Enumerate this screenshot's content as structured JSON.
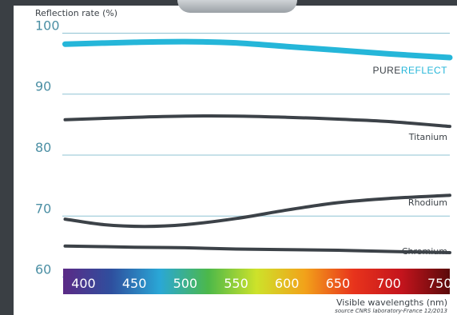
{
  "chart_data": {
    "type": "line",
    "ylabel": "Reflection rate (%)",
    "xlabel": "Visible wavelengths (nm)",
    "source": "source CNRS laboratory-France 12/2013",
    "ylim": [
      58.5,
      101.5
    ],
    "xlim": [
      380,
      760
    ],
    "y_ticks": [
      100,
      90,
      80,
      70,
      60
    ],
    "x_ticks": [
      "400",
      "450",
      "500",
      "550",
      "600",
      "650",
      "700",
      "750"
    ],
    "series": [
      {
        "name": "PUREREFLECT",
        "name_part1": "PURE",
        "name_part2": "REFLECT",
        "color": "#25b6d9",
        "points": [
          [
            382,
            98.2
          ],
          [
            450,
            98.5
          ],
          [
            500,
            98.6
          ],
          [
            550,
            98.4
          ],
          [
            600,
            97.8
          ],
          [
            650,
            97.2
          ],
          [
            700,
            96.6
          ],
          [
            760,
            96.0
          ]
        ]
      },
      {
        "name": "Titanium",
        "color": "#3c4248",
        "points": [
          [
            382,
            85.8
          ],
          [
            450,
            86.2
          ],
          [
            500,
            86.4
          ],
          [
            550,
            86.4
          ],
          [
            600,
            86.2
          ],
          [
            650,
            85.9
          ],
          [
            700,
            85.5
          ],
          [
            760,
            84.7
          ]
        ]
      },
      {
        "name": "Rhodium",
        "color": "#3c4248",
        "points": [
          [
            382,
            69.5
          ],
          [
            420,
            68.6
          ],
          [
            460,
            68.3
          ],
          [
            500,
            68.6
          ],
          [
            550,
            69.6
          ],
          [
            600,
            71.0
          ],
          [
            650,
            72.2
          ],
          [
            700,
            72.9
          ],
          [
            760,
            73.4
          ]
        ]
      },
      {
        "name": "Chromium",
        "color": "#3c4248",
        "points": [
          [
            382,
            65.1
          ],
          [
            450,
            64.9
          ],
          [
            500,
            64.8
          ],
          [
            550,
            64.6
          ],
          [
            600,
            64.5
          ],
          [
            650,
            64.4
          ],
          [
            700,
            64.2
          ],
          [
            760,
            64.0
          ]
        ]
      }
    ],
    "colors": {
      "axis_tick_text": "#4b8fa4",
      "gridline": "#8fc3d3",
      "purereflect_part1": "#3c4248",
      "purereflect_part2": "#25b6d9",
      "spectrum": [
        "#5b2a86",
        "#2e4f9e",
        "#2aa7d6",
        "#4cb84a",
        "#cde22a",
        "#f2a21a",
        "#e8341c",
        "#c4141d",
        "#5a0a0a"
      ]
    },
    "grid": true
  }
}
